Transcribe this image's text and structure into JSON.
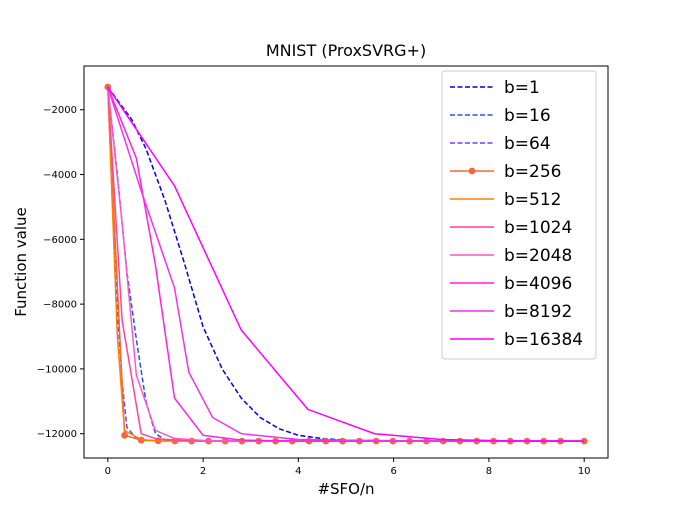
{
  "chart_data": {
    "type": "line",
    "title": "MNIST (ProxSVRG+)",
    "xlabel": "#SFO/n",
    "ylabel": "Function value",
    "xlim": [
      -0.5,
      10.5
    ],
    "ylim": [
      -12750,
      -650
    ],
    "xticks": [
      "0",
      "2",
      "4",
      "6",
      "8",
      "10"
    ],
    "yticks": [
      "−12000",
      "−10000",
      "−8000",
      "−6000",
      "−4000",
      "−2000"
    ],
    "xtick_values": [
      0,
      2,
      4,
      6,
      8,
      10
    ],
    "ytick_values": [
      -12000,
      -10000,
      -8000,
      -6000,
      -4000,
      -2000
    ],
    "grid": false,
    "legend_position": "top-right",
    "series": [
      {
        "name": "b=1",
        "color": "#0000e0",
        "style": "dashed",
        "marker": "none",
        "x": [
          0,
          0.5,
          0.8,
          1.2,
          1.6,
          2.0,
          2.4,
          2.8,
          3.2,
          3.6,
          4.0,
          4.5,
          5.0,
          6.0,
          7.0,
          8.0,
          9.0,
          10.0
        ],
        "y": [
          -1300,
          -2300,
          -3200,
          -4800,
          -6700,
          -8700,
          -10000,
          -10900,
          -11500,
          -11850,
          -12050,
          -12150,
          -12200,
          -12220,
          -12230,
          -12230,
          -12230,
          -12230
        ]
      },
      {
        "name": "b=16",
        "color": "#2255e0",
        "style": "dashed",
        "marker": "none",
        "x": [
          0,
          0.2,
          0.4,
          0.6,
          0.8,
          1.0,
          1.2,
          1.6,
          2,
          4,
          6,
          8,
          10
        ],
        "y": [
          -1300,
          -4000,
          -7000,
          -9100,
          -11000,
          -12000,
          -12180,
          -12220,
          -12225,
          -12230,
          -12230,
          -12230,
          -12230
        ]
      },
      {
        "name": "b=64",
        "color": "#7040f0",
        "style": "dashed",
        "marker": "none",
        "x": [
          0,
          0.1,
          0.2,
          0.3,
          0.4,
          0.6,
          0.8,
          1.0,
          2,
          4,
          6,
          8,
          10
        ],
        "y": [
          -1300,
          -5000,
          -8200,
          -10400,
          -11800,
          -12150,
          -12200,
          -12220,
          -12225,
          -12230,
          -12230,
          -12230,
          -12230
        ]
      },
      {
        "name": "b=256",
        "color": "#f06840",
        "style": "solid",
        "marker": "circle",
        "x": [
          0,
          0.352,
          0.704,
          1.056,
          1.408,
          1.76,
          2.112,
          2.464,
          2.816,
          3.168,
          3.52,
          3.872,
          4.224,
          4.576,
          4.928,
          5.28,
          5.632,
          5.984,
          6.336,
          6.688,
          7.04,
          7.392,
          7.744,
          8.096,
          8.448,
          8.8,
          9.152,
          9.504,
          10.0
        ],
        "y": [
          -1300,
          -12050,
          -12200,
          -12220,
          -12225,
          -12228,
          -12230,
          -12230,
          -12230,
          -12230,
          -12230,
          -12230,
          -12230,
          -12230,
          -12230,
          -12230,
          -12230,
          -12230,
          -12230,
          -12230,
          -12230,
          -12230,
          -12230,
          -12230,
          -12230,
          -12230,
          -12230,
          -12230,
          -12230
        ]
      },
      {
        "name": "b=512",
        "color": "#ff8000",
        "style": "solid",
        "marker": "none",
        "x": [
          0,
          0.2,
          0.35,
          0.7,
          1.0,
          2,
          4,
          6,
          8,
          10
        ],
        "y": [
          -1300,
          -9000,
          -11900,
          -12180,
          -12220,
          -12228,
          -12230,
          -12230,
          -12230,
          -12230
        ]
      },
      {
        "name": "b=1024",
        "color": "#ff4499",
        "style": "solid",
        "marker": "none",
        "x": [
          0,
          0.3,
          0.7,
          1.0,
          1.4,
          2,
          4,
          6,
          8,
          10
        ],
        "y": [
          -1300,
          -8500,
          -12000,
          -12150,
          -12200,
          -12220,
          -12230,
          -12230,
          -12230,
          -12230
        ]
      },
      {
        "name": "b=2048",
        "color": "#ff55cc",
        "style": "solid",
        "marker": "none",
        "x": [
          0,
          0.3,
          0.6,
          1.0,
          1.4,
          2,
          4,
          6,
          8,
          10
        ],
        "y": [
          -1300,
          -5500,
          -10200,
          -11900,
          -12150,
          -12210,
          -12230,
          -12230,
          -12230,
          -12230
        ]
      },
      {
        "name": "b=4096",
        "color": "#ff22dd",
        "style": "solid",
        "marker": "none",
        "x": [
          0,
          0.6,
          1.0,
          1.4,
          2.0,
          2.8,
          4,
          6,
          8,
          10
        ],
        "y": [
          -1300,
          -3500,
          -6800,
          -10900,
          -12050,
          -12200,
          -12225,
          -12230,
          -12230,
          -12230
        ]
      },
      {
        "name": "b=8192",
        "color": "#ee33ee",
        "style": "solid",
        "marker": "none",
        "x": [
          0,
          0.7,
          1.4,
          1.7,
          2.2,
          2.8,
          4,
          6,
          8,
          10
        ],
        "y": [
          -1300,
          -4500,
          -7500,
          -10100,
          -11500,
          -12000,
          -12180,
          -12220,
          -12230,
          -12230
        ]
      },
      {
        "name": "b=16384",
        "color": "#ff00ff",
        "style": "solid",
        "marker": "none",
        "x": [
          0,
          1.4,
          2.8,
          4.2,
          5.6,
          7,
          8.4,
          10
        ],
        "y": [
          -1300,
          -4350,
          -8800,
          -11250,
          -12000,
          -12180,
          -12220,
          -12230
        ]
      }
    ]
  }
}
